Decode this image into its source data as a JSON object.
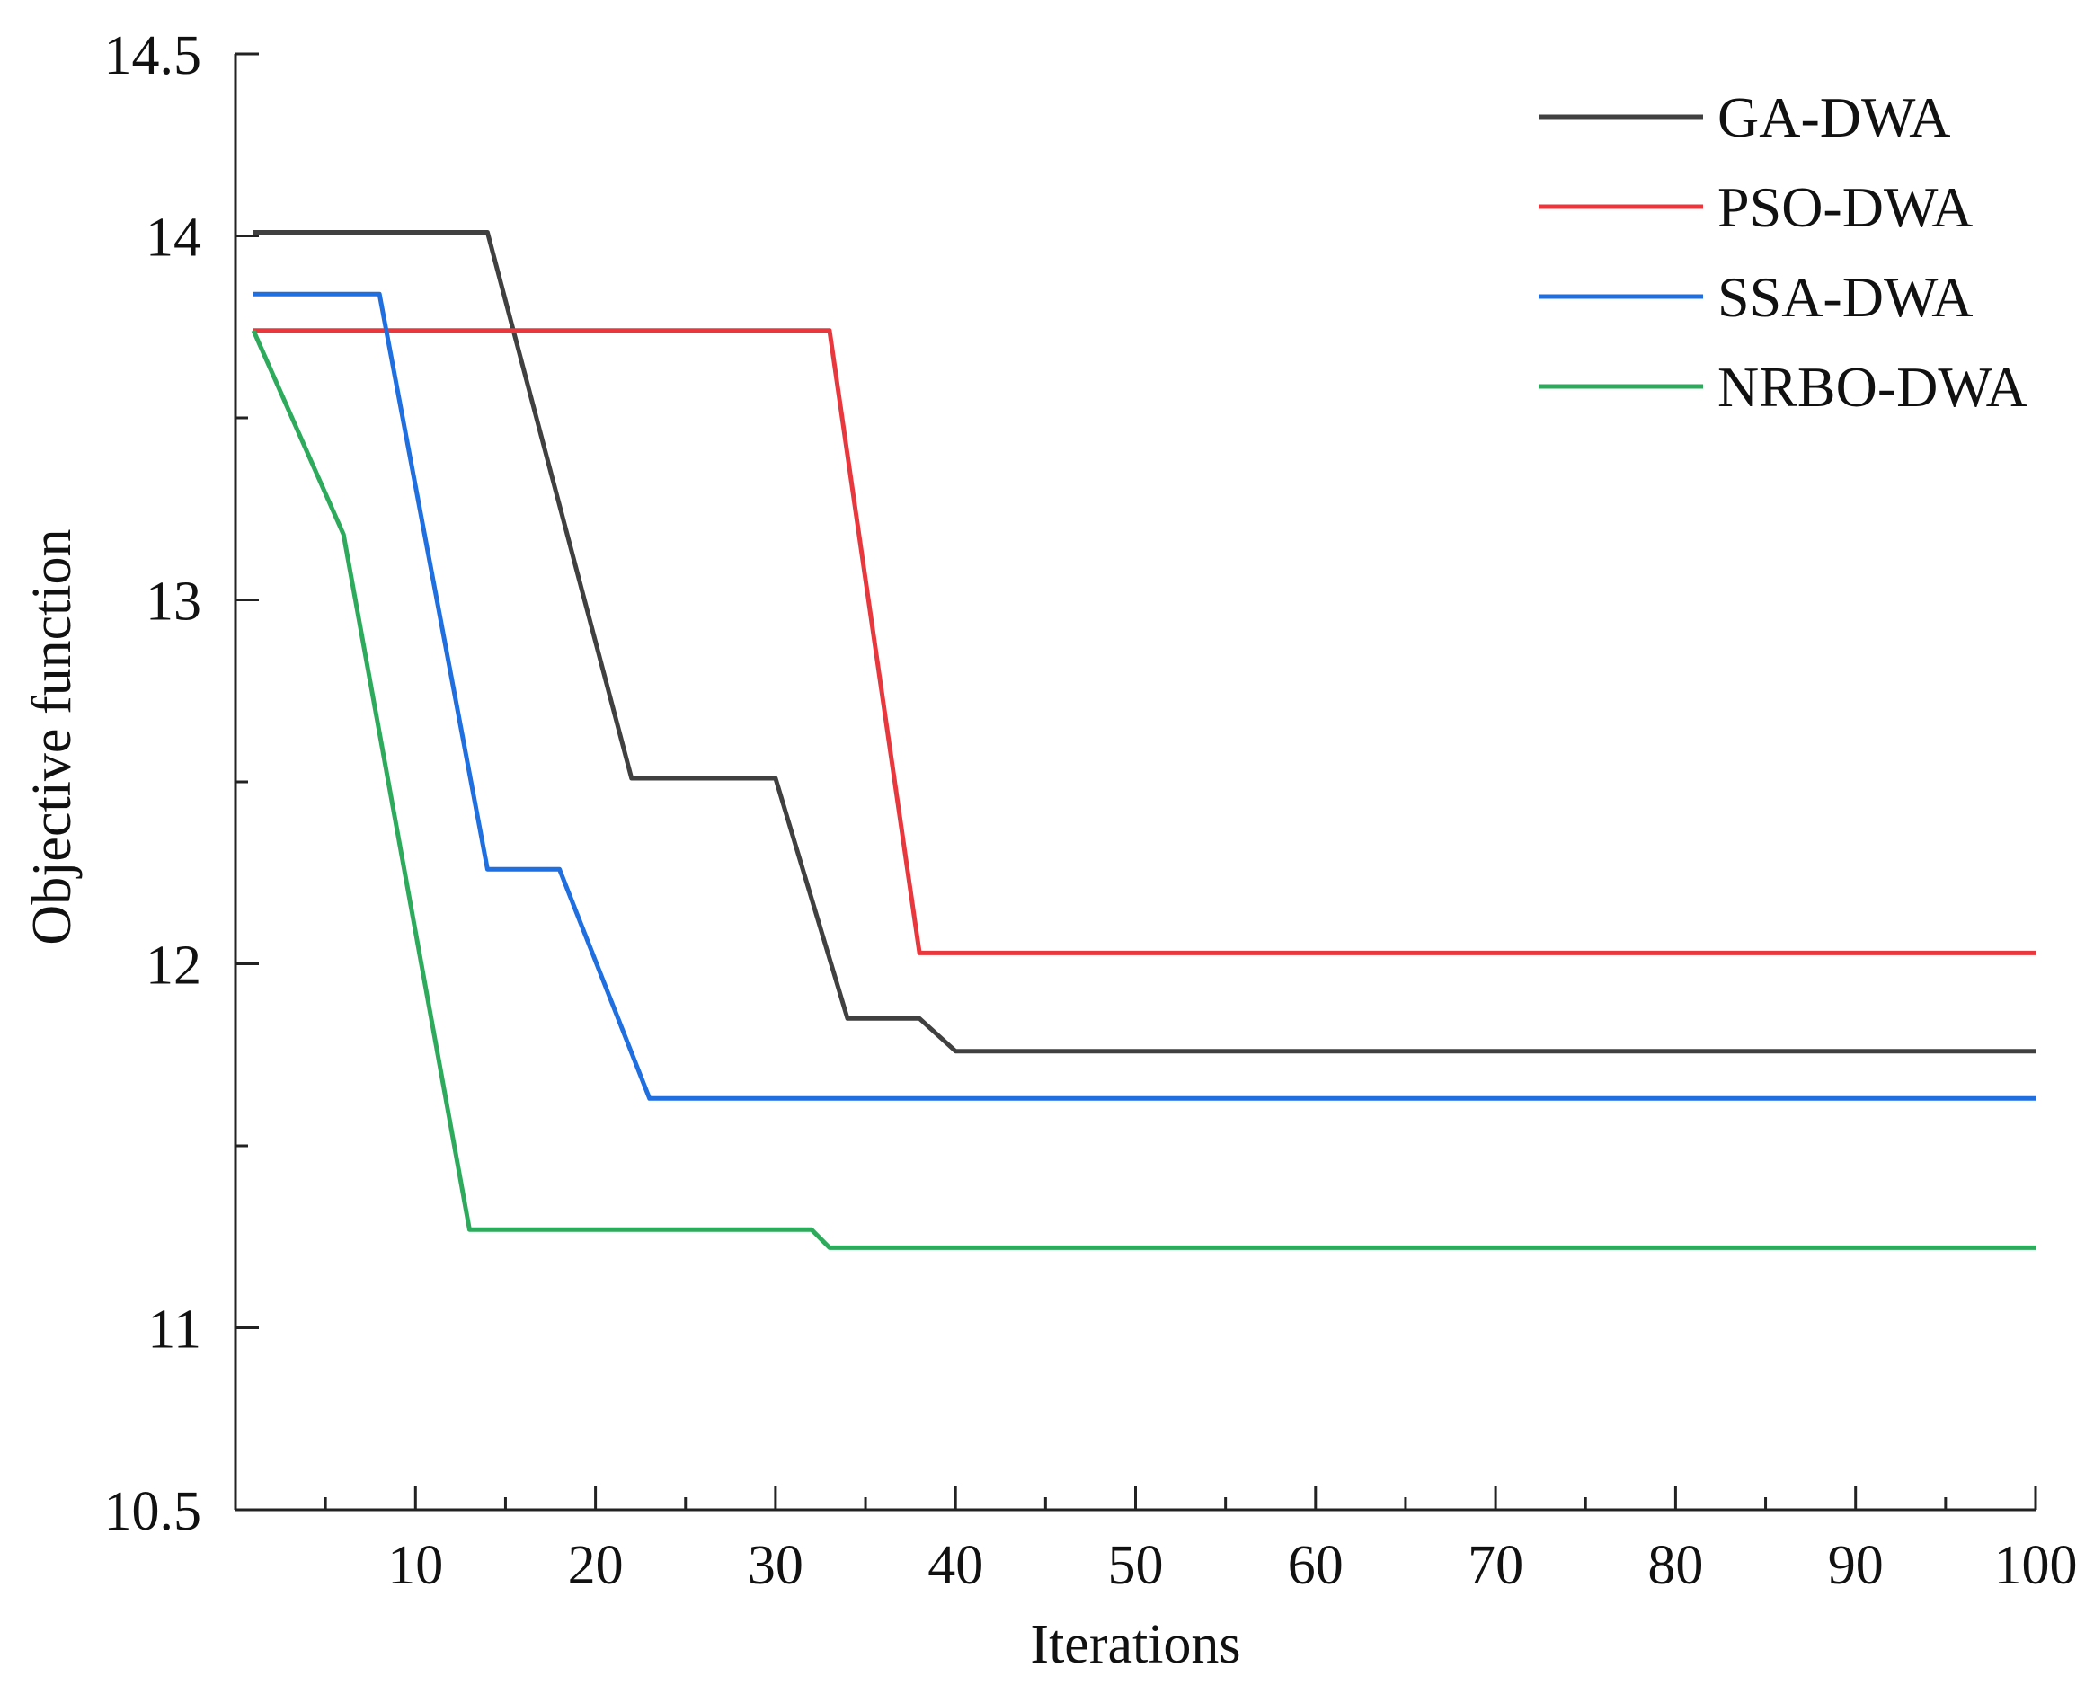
{
  "chart_data": {
    "type": "line",
    "title": "",
    "xlabel": "Iterations",
    "ylabel": "Objective function",
    "xlim": [
      0,
      100
    ],
    "ylim": [
      10.5,
      14.5
    ],
    "x_ticks": [
      10,
      20,
      30,
      40,
      50,
      60,
      70,
      80,
      90,
      100
    ],
    "x_tick_labels": [
      "10",
      "20",
      "30",
      "40",
      "50",
      "60",
      "70",
      "80",
      "90",
      "100"
    ],
    "x_minor_ticks": [
      5,
      15,
      25,
      35,
      45,
      55,
      65,
      75,
      85,
      95
    ],
    "y_ticks": [
      10.5,
      11,
      12,
      13,
      14,
      14.5
    ],
    "y_tick_labels": [
      "10.5",
      "11",
      "12",
      "13",
      "14",
      "14.5"
    ],
    "y_minor_ticks": [
      11.5,
      12.5,
      13.5
    ],
    "grid": false,
    "legend_position": "top-right",
    "series": [
      {
        "name": "GA-DWA",
        "color": "#404040",
        "points": [
          [
            1,
            14.01
          ],
          [
            14,
            14.01
          ],
          [
            22,
            12.51
          ],
          [
            30,
            12.51
          ],
          [
            34,
            11.85
          ],
          [
            38,
            11.85
          ],
          [
            40,
            11.76
          ],
          [
            100,
            11.76
          ]
        ]
      },
      {
        "name": "PSO-DWA",
        "color": "#e8383d",
        "points": [
          [
            1,
            13.74
          ],
          [
            33,
            13.74
          ],
          [
            38,
            12.03
          ],
          [
            100,
            12.03
          ]
        ]
      },
      {
        "name": "SSA-DWA",
        "color": "#1f6fe0",
        "points": [
          [
            1,
            13.84
          ],
          [
            8,
            13.84
          ],
          [
            14,
            12.26
          ],
          [
            18,
            12.26
          ],
          [
            23,
            11.63
          ],
          [
            100,
            11.63
          ]
        ]
      },
      {
        "name": "NRBO-DWA",
        "color": "#2eaa5c",
        "points": [
          [
            1,
            13.74
          ],
          [
            6,
            13.18
          ],
          [
            13,
            11.27
          ],
          [
            32,
            11.27
          ],
          [
            33,
            11.22
          ],
          [
            100,
            11.22
          ]
        ]
      }
    ]
  }
}
